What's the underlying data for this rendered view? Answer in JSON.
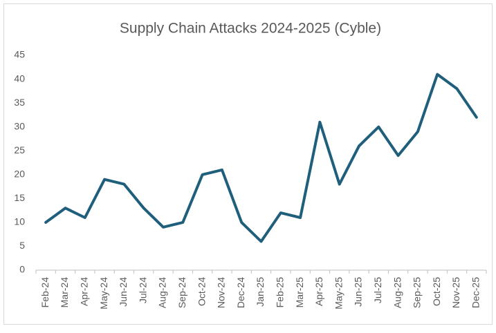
{
  "chart_data": {
    "type": "line",
    "title": "Supply Chain Attacks 2024-2025 (Cyble)",
    "categories": [
      "Feb-24",
      "Mar-24",
      "Apr-24",
      "May-24",
      "Jun-24",
      "Jul-24",
      "Aug-24",
      "Sep-24",
      "Oct-24",
      "Nov-24",
      "Dec-24",
      "Jan-25",
      "Feb-25",
      "Mar-25",
      "Apr-25",
      "May-25",
      "Jun-25",
      "Jul-25",
      "Aug-25",
      "Sep-25",
      "Oct-25",
      "Nov-25",
      "Dec-25"
    ],
    "values": [
      10,
      13,
      11,
      19,
      18,
      13,
      9,
      10,
      20,
      21,
      10,
      6,
      12,
      11,
      31,
      18,
      26,
      30,
      24,
      29,
      41,
      38,
      32
    ],
    "color": "#1f5f7b",
    "ylim": [
      0,
      45
    ],
    "yticks": [
      0,
      5,
      10,
      15,
      20,
      25,
      30,
      35,
      40,
      45
    ],
    "grid": false
  }
}
